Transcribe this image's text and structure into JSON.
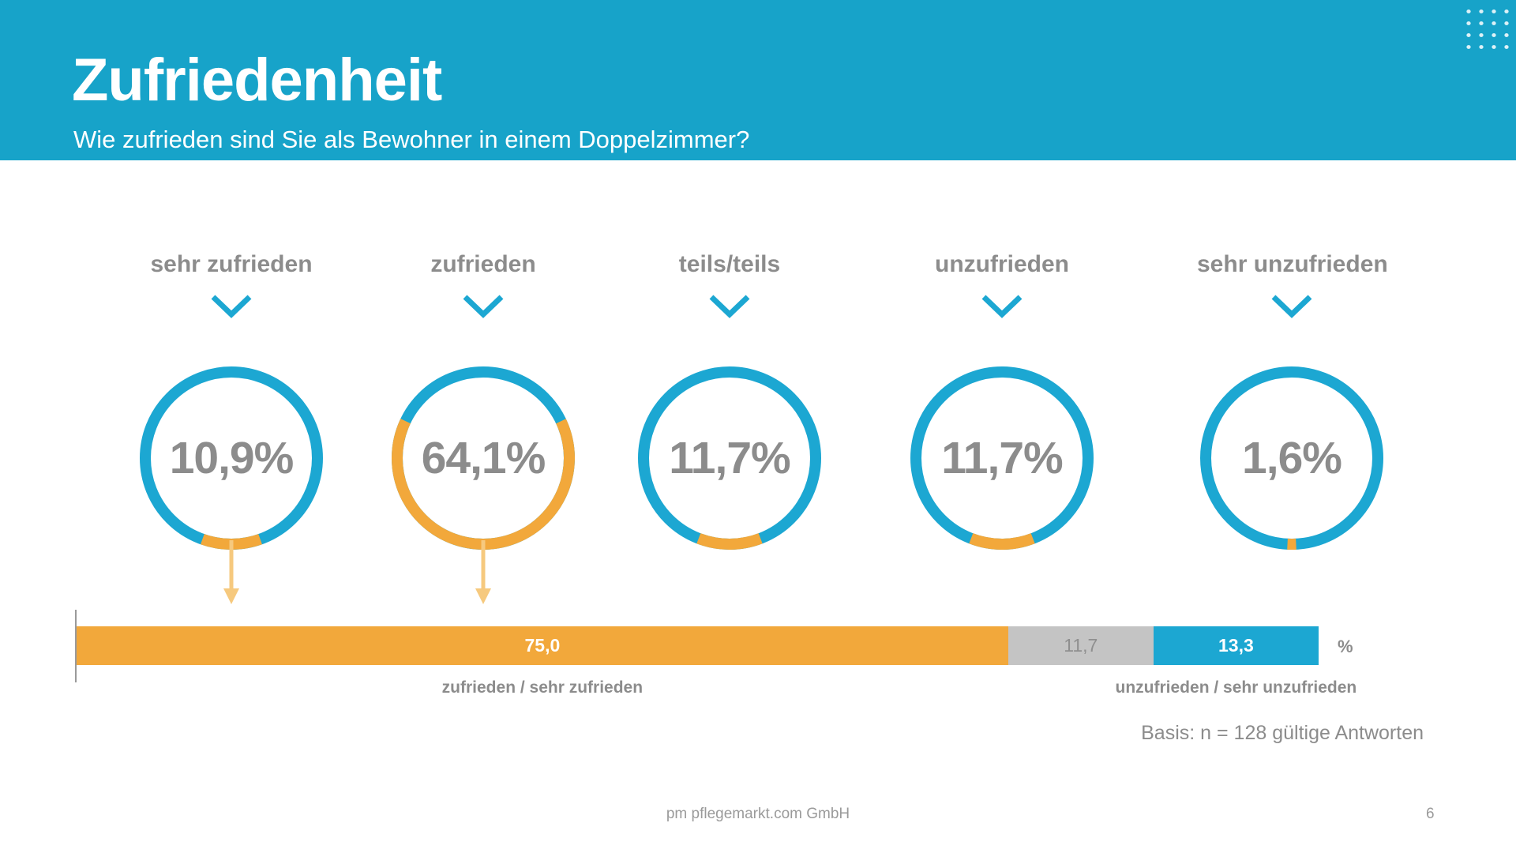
{
  "header": {
    "title": "Zufriedenheit",
    "subtitle": "Wie zufrieden sind Sie als Bewohner in einem Doppelzimmer?"
  },
  "colors": {
    "cyan": "#17a3c9",
    "ring_blue": "#1ca7d2",
    "accent_orange": "#f2a83b",
    "arrow_orange": "#f6c97e",
    "bar_gray": "#c4c4c4",
    "text_gray": "#8c8c8c"
  },
  "chart_data": [
    {
      "type": "pie",
      "subtype": "donut-set",
      "description": "Five donut gauges, orange arc centered at bottom shows each share, rest of ring blue",
      "items": [
        {
          "label": "sehr zufrieden",
          "value": 10.9,
          "display": "10,9%",
          "arrow_to_bar": true
        },
        {
          "label": "zufrieden",
          "value": 64.1,
          "display": "64,1%",
          "arrow_to_bar": true
        },
        {
          "label": "teils/teils",
          "value": 11.7,
          "display": "11,7%",
          "arrow_to_bar": false
        },
        {
          "label": "unzufrieden",
          "value": 11.7,
          "display": "11,7%",
          "arrow_to_bar": false
        },
        {
          "label": "sehr unzufrieden",
          "value": 1.6,
          "display": "1,6%",
          "arrow_to_bar": false
        }
      ]
    },
    {
      "type": "bar",
      "stacked": true,
      "orientation": "horizontal",
      "x_range": [
        0,
        100
      ],
      "unit_label": "%",
      "segments": [
        {
          "label": "zufrieden / sehr zufrieden",
          "value": 75.0,
          "display": "75,0",
          "color_key": "accent_orange",
          "text_color": "#ffffff",
          "bold": true
        },
        {
          "label": "",
          "value": 11.7,
          "display": "11,7",
          "color_key": "bar_gray",
          "text_color": "#8f8f8f",
          "bold": false
        },
        {
          "label": "unzufrieden / sehr unzufrieden",
          "value": 13.3,
          "display": "13,3",
          "color_key": "ring_blue",
          "text_color": "#ffffff",
          "bold": true
        }
      ]
    }
  ],
  "notes": {
    "basis": "Basis: n = 128 gültige Antworten"
  },
  "footer": {
    "company": "pm pflegemarkt.com GmbH",
    "page": "6"
  }
}
